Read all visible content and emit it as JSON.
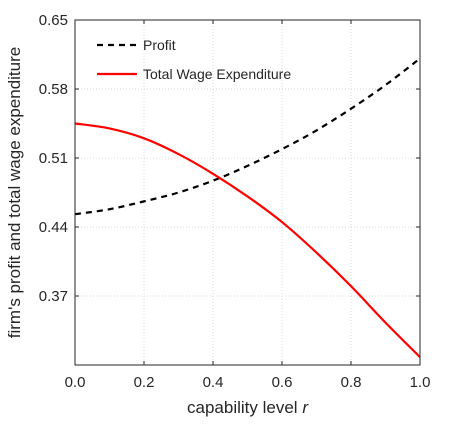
{
  "chart_data": {
    "type": "line",
    "title": "",
    "xlabel": "capability level",
    "xlabel_var": "r",
    "ylabel": "firm's profit and total wage expenditure",
    "xlim": [
      0,
      1
    ],
    "ylim": [
      0.3,
      0.65
    ],
    "xticks": [
      0,
      0.2,
      0.4,
      0.6,
      0.8,
      1
    ],
    "xtick_labels": [
      "0.0",
      "0.2",
      "0.4",
      "0.6",
      "0.8",
      "1.0"
    ],
    "yticks": [
      0.37,
      0.44,
      0.51,
      0.58,
      0.65
    ],
    "ytick_labels": [
      "0.37",
      "0.44",
      "0.51",
      "0.58",
      "0.65"
    ],
    "grid": true,
    "legend_position": "top-left",
    "x": [
      0,
      0.1,
      0.2,
      0.3,
      0.4,
      0.5,
      0.6,
      0.7,
      0.8,
      0.9,
      1.0
    ],
    "series": [
      {
        "name": "Profit",
        "style": "dashed",
        "color": "#000000",
        "values": [
          0.453,
          0.458,
          0.466,
          0.475,
          0.487,
          0.502,
          0.519,
          0.538,
          0.56,
          0.584,
          0.611
        ]
      },
      {
        "name": "Total Wage Expenditure",
        "style": "solid",
        "color": "#ff0000",
        "values": [
          0.545,
          0.54,
          0.53,
          0.514,
          0.494,
          0.471,
          0.445,
          0.414,
          0.38,
          0.343,
          0.308
        ]
      }
    ]
  }
}
